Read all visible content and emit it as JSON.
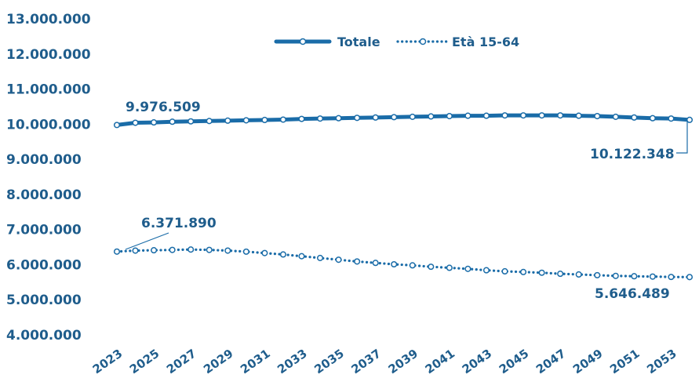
{
  "chart_data": {
    "type": "line",
    "x": [
      2023,
      2024,
      2025,
      2026,
      2027,
      2028,
      2029,
      2030,
      2031,
      2032,
      2033,
      2034,
      2035,
      2036,
      2037,
      2038,
      2039,
      2040,
      2041,
      2042,
      2043,
      2044,
      2045,
      2046,
      2047,
      2048,
      2049,
      2050,
      2051,
      2052,
      2053,
      2054
    ],
    "x_tick_labels": [
      "2023",
      "2025",
      "2027",
      "2029",
      "2031",
      "2033",
      "2035",
      "2037",
      "2039",
      "2041",
      "2043",
      "2045",
      "2047",
      "2049",
      "2051",
      "2053"
    ],
    "y_ticks": [
      4000000,
      5000000,
      6000000,
      7000000,
      8000000,
      9000000,
      10000000,
      11000000,
      12000000,
      13000000
    ],
    "y_tick_labels": [
      "4.000.000",
      "5.000.000",
      "6.000.000",
      "7.000.000",
      "8.000.000",
      "9.000.000",
      "10.000.000",
      "11.000.000",
      "12.000.000",
      "13.000.000"
    ],
    "ylim": [
      4000000,
      13000000
    ],
    "series": [
      {
        "name": "Totale",
        "style": "solid",
        "color": "#1a6ca8",
        "values": [
          9976509,
          10040000,
          10050000,
          10070000,
          10080000,
          10090000,
          10100000,
          10110000,
          10120000,
          10130000,
          10150000,
          10160000,
          10170000,
          10180000,
          10190000,
          10200000,
          10210000,
          10220000,
          10230000,
          10240000,
          10240000,
          10250000,
          10250000,
          10250000,
          10250000,
          10240000,
          10230000,
          10210000,
          10190000,
          10170000,
          10160000,
          10122348
        ]
      },
      {
        "name": "Età 15-64",
        "style": "dotted",
        "color": "#1a6ca8",
        "values": [
          6371890,
          6400000,
          6410000,
          6420000,
          6430000,
          6420000,
          6400000,
          6370000,
          6330000,
          6290000,
          6240000,
          6190000,
          6140000,
          6090000,
          6050000,
          6010000,
          5980000,
          5940000,
          5910000,
          5880000,
          5840000,
          5810000,
          5790000,
          5770000,
          5740000,
          5720000,
          5700000,
          5680000,
          5670000,
          5660000,
          5650000,
          5646489
        ]
      }
    ],
    "annotations": [
      {
        "label": "9.976.509",
        "series": 0,
        "index": 0
      },
      {
        "label": "10.122.348",
        "series": 0,
        "index": 31
      },
      {
        "label": "6.371.890",
        "series": 1,
        "index": 0
      },
      {
        "label": "5.646.489",
        "series": 1,
        "index": 31
      }
    ],
    "legend": "top-center",
    "grid": false
  }
}
